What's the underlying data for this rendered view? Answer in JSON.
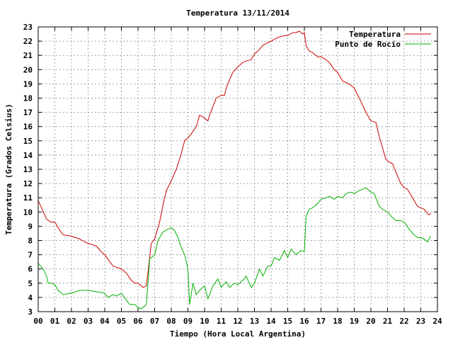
{
  "chart_data": {
    "type": "line",
    "title": "Temperatura 13/11/2014",
    "xlabel": "Tiempo (Hora Local Argentina)",
    "ylabel": "Temperatura (Grados Celsius)",
    "xlim": [
      0,
      24
    ],
    "ylim": [
      3,
      23
    ],
    "xticks": [
      "00",
      "01",
      "02",
      "03",
      "04",
      "05",
      "06",
      "07",
      "08",
      "09",
      "10",
      "11",
      "12",
      "13",
      "14",
      "15",
      "16",
      "17",
      "18",
      "19",
      "20",
      "21",
      "22",
      "23",
      "24"
    ],
    "yticks": [
      3,
      4,
      5,
      6,
      7,
      8,
      9,
      10,
      11,
      12,
      13,
      14,
      15,
      16,
      17,
      18,
      19,
      20,
      21,
      22,
      23
    ],
    "grid": true,
    "legend_position": "top-right",
    "series": [
      {
        "name": "Temperatura",
        "color": "#cc0000",
        "x": [
          0,
          0.5,
          0.75,
          1.0,
          1.3,
          1.5,
          2.0,
          2.5,
          2.8,
          3.0,
          3.5,
          3.8,
          4.0,
          4.3,
          4.5,
          5.0,
          5.3,
          5.6,
          5.8,
          6.0,
          6.2,
          6.3,
          6.5,
          6.8,
          7.0,
          7.3,
          7.5,
          7.7,
          8.0,
          8.3,
          8.6,
          8.8,
          9.0,
          9.2,
          9.5,
          9.7,
          10.0,
          10.2,
          10.3,
          10.5,
          10.7,
          11.0,
          11.2,
          11.3,
          11.5,
          11.7,
          12.0,
          12.3,
          12.5,
          12.8,
          13.0,
          13.2,
          13.5,
          13.8,
          14.0,
          14.3,
          14.5,
          14.8,
          15.0,
          15.3,
          15.5,
          15.7,
          15.9,
          16.0,
          16.1,
          16.3,
          16.5,
          16.8,
          17.0,
          17.3,
          17.5,
          17.8,
          18.0,
          18.3,
          18.5,
          18.8,
          19.0,
          19.3,
          19.5,
          19.7,
          20.0,
          20.3,
          20.5,
          20.7,
          20.9,
          21.1,
          21.3,
          21.5,
          21.8,
          22.0,
          22.2,
          22.5,
          22.8,
          23.0,
          23.2,
          23.4,
          23.5,
          23.6
        ],
        "y": [
          10.8,
          9.5,
          9.3,
          9.3,
          8.7,
          8.4,
          8.3,
          8.1,
          7.9,
          7.8,
          7.6,
          7.2,
          7.0,
          6.5,
          6.2,
          6.0,
          5.7,
          5.2,
          5.0,
          5.0,
          4.8,
          4.7,
          4.8,
          7.8,
          8.1,
          9.3,
          10.5,
          11.5,
          12.2,
          13.0,
          14.1,
          15.0,
          15.2,
          15.5,
          16.0,
          16.8,
          16.6,
          16.4,
          16.8,
          17.4,
          18.0,
          18.2,
          18.2,
          18.7,
          19.3,
          19.8,
          20.2,
          20.5,
          20.6,
          20.7,
          21.1,
          21.3,
          21.7,
          21.9,
          22.0,
          22.2,
          22.3,
          22.4,
          22.4,
          22.6,
          22.6,
          22.7,
          22.5,
          22.6,
          21.7,
          21.3,
          21.2,
          20.9,
          20.9,
          20.7,
          20.5,
          20.0,
          19.8,
          19.2,
          19.1,
          18.9,
          18.7,
          18.0,
          17.5,
          17.0,
          16.4,
          16.3,
          15.3,
          14.5,
          13.7,
          13.5,
          13.4,
          12.8,
          12.0,
          11.7,
          11.6,
          11.0,
          10.4,
          10.3,
          10.2,
          9.9,
          9.8,
          9.9
        ]
      },
      {
        "name": "Punto de Rocío",
        "color": "#00b000",
        "x": [
          0,
          0.3,
          0.5,
          0.6,
          0.8,
          1.0,
          1.2,
          1.5,
          2.0,
          2.5,
          3.0,
          3.5,
          4.0,
          4.2,
          4.5,
          4.7,
          5.0,
          5.3,
          5.5,
          5.8,
          6.0,
          6.2,
          6.5,
          6.7,
          7.0,
          7.2,
          7.5,
          7.8,
          8.0,
          8.2,
          8.4,
          8.6,
          8.8,
          9.0,
          9.1,
          9.3,
          9.5,
          9.7,
          10.0,
          10.2,
          10.5,
          10.8,
          11.0,
          11.3,
          11.5,
          11.8,
          12.0,
          12.3,
          12.5,
          12.8,
          13.0,
          13.3,
          13.5,
          13.8,
          14.0,
          14.2,
          14.5,
          14.8,
          15.0,
          15.2,
          15.5,
          15.8,
          16.0,
          16.1,
          16.3,
          16.5,
          16.8,
          17.0,
          17.3,
          17.5,
          17.8,
          18.0,
          18.3,
          18.5,
          18.8,
          19.0,
          19.3,
          19.5,
          19.7,
          20.0,
          20.2,
          20.5,
          20.7,
          21.0,
          21.3,
          21.5,
          21.8,
          22.0,
          22.3,
          22.5,
          22.8,
          23.0,
          23.2,
          23.4,
          23.5,
          23.6
        ],
        "y": [
          6.4,
          6.0,
          5.5,
          5.0,
          5.0,
          4.9,
          4.5,
          4.2,
          4.3,
          4.5,
          4.5,
          4.4,
          4.3,
          4.0,
          4.2,
          4.1,
          4.3,
          3.8,
          3.5,
          3.5,
          3.3,
          3.2,
          3.5,
          6.7,
          7.0,
          8.0,
          8.6,
          8.8,
          8.9,
          8.7,
          8.2,
          7.5,
          7.0,
          6.0,
          3.5,
          5.0,
          4.2,
          4.5,
          4.8,
          3.9,
          4.8,
          5.3,
          4.7,
          5.1,
          4.7,
          5.0,
          4.9,
          5.2,
          5.5,
          4.7,
          5.0,
          6.0,
          5.5,
          6.2,
          6.2,
          6.8,
          6.6,
          7.3,
          6.8,
          7.4,
          7.0,
          7.3,
          7.2,
          9.7,
          10.2,
          10.3,
          10.6,
          10.9,
          11.0,
          11.1,
          10.9,
          11.1,
          11.0,
          11.3,
          11.4,
          11.3,
          11.5,
          11.6,
          11.7,
          11.4,
          11.3,
          10.4,
          10.2,
          10.0,
          9.6,
          9.4,
          9.4,
          9.3,
          8.8,
          8.5,
          8.2,
          8.2,
          8.1,
          7.9,
          8.1,
          8.3
        ]
      }
    ]
  }
}
